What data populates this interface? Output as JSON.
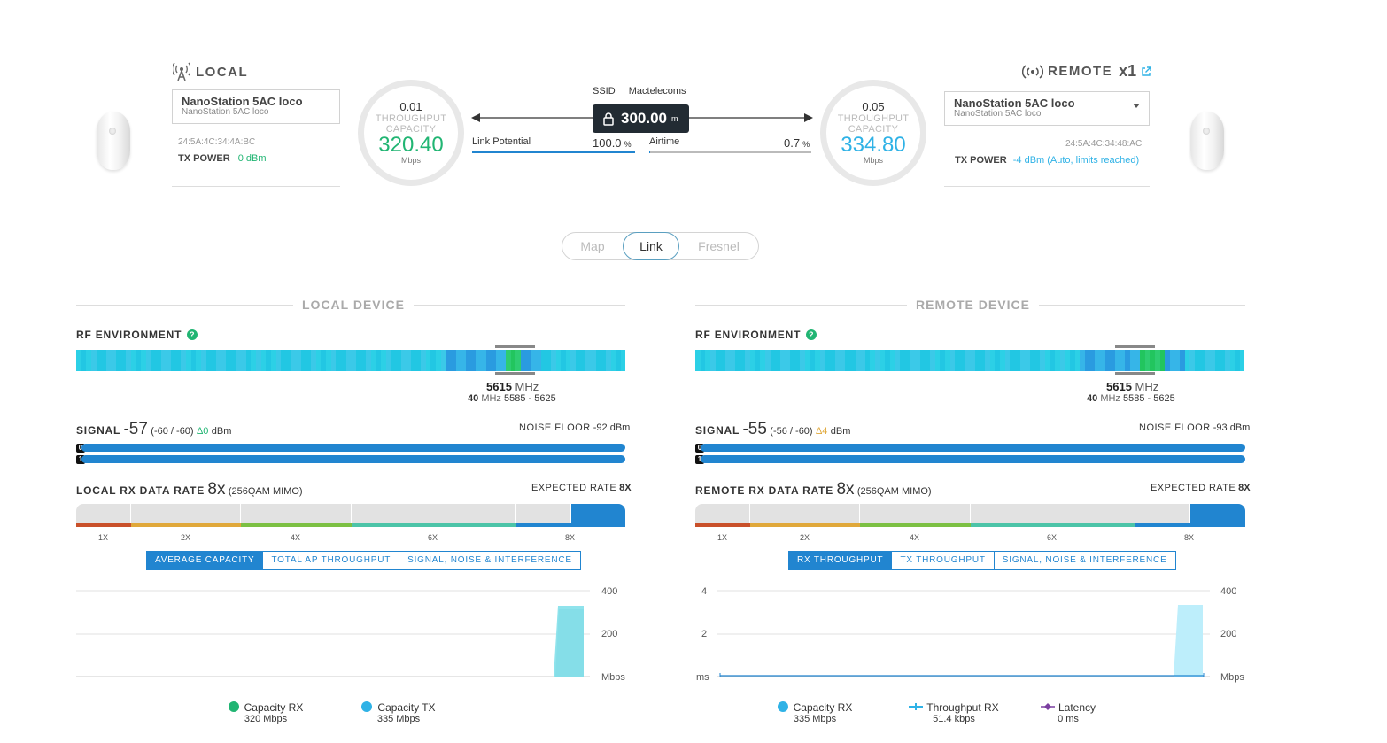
{
  "colors": {
    "accent": "#2185d0",
    "capacity_green": "#21b573",
    "capacity_blue": "#2fb2e6",
    "lock_bg": "#222b33",
    "chart_fill": "#8fe3ec"
  },
  "local": {
    "heading": "LOCAL",
    "device_name": "NanoStation 5AC loco",
    "device_model": "NanoStation 5AC loco",
    "mac": "24:5A:4C:34:4A:BC",
    "tx_power_label": "TX POWER",
    "tx_power_value": "0 dBm",
    "gauge": {
      "throughput": "0.01",
      "throughput_label": "THROUGHPUT",
      "capacity_label": "CAPACITY",
      "capacity": "320.40",
      "unit": "Mbps"
    }
  },
  "remote": {
    "heading": "REMOTE",
    "count": "x1",
    "device_name": "NanoStation 5AC loco",
    "device_model": "NanoStation 5AC loco",
    "mac": "24:5A:4C:34:48:AC",
    "tx_power_label": "TX POWER",
    "tx_power_value": "-4 dBm (Auto, limits reached)",
    "gauge": {
      "throughput": "0.05",
      "throughput_label": "THROUGHPUT",
      "capacity_label": "CAPACITY",
      "capacity": "334.80",
      "unit": "Mbps"
    }
  },
  "link": {
    "ssid_label": "SSID",
    "ssid": "Mactelecoms",
    "distance": "300.00",
    "distance_unit": "m",
    "link_potential_label": "Link Potential",
    "link_potential": "100.0",
    "airtime_label": "Airtime",
    "airtime": "0.7",
    "percent": "%",
    "link_potential_fraction": 1.0,
    "airtime_fraction": 0.007
  },
  "view_tabs": [
    "Map",
    "Link",
    "Fresnel"
  ],
  "view_tab_active": "Link",
  "local_device": {
    "section_title": "LOCAL DEVICE",
    "rf_label": "RF ENVIRONMENT",
    "freq": "5615",
    "freq_unit": "MHz",
    "width": "40",
    "width_unit": "MHz",
    "range": "5585 - 5625",
    "signal_label": "SIGNAL",
    "signal": "-57",
    "signal_chains": "(-60 / -60)",
    "signal_delta": "Δ0",
    "signal_unit": "dBm",
    "noise_label": "NOISE FLOOR",
    "noise": "-92 dBm",
    "rate_label": "LOCAL RX DATA RATE",
    "rate": "8x",
    "rate_mod": "(256QAM MIMO)",
    "expected_label": "EXPECTED RATE",
    "expected": "8X",
    "rate_ticks": [
      "1X",
      "2X",
      "4X",
      "6X",
      "8X"
    ],
    "chart_tabs": [
      "AVERAGE CAPACITY",
      "TOTAL AP THROUGHPUT",
      "SIGNAL, NOISE & INTERFERENCE"
    ],
    "chart_tab_active": 0,
    "y_ticks": [
      "400",
      "200",
      "Mbps"
    ],
    "legend": [
      {
        "label": "Capacity RX",
        "value": "320 Mbps",
        "color": "#21b573",
        "icon": "dot-icon"
      },
      {
        "label": "Capacity TX",
        "value": "335 Mbps",
        "color": "#2fb2e6",
        "icon": "dot-icon"
      }
    ]
  },
  "remote_device": {
    "section_title": "REMOTE DEVICE",
    "rf_label": "RF ENVIRONMENT",
    "freq": "5615",
    "freq_unit": "MHz",
    "width": "40",
    "width_unit": "MHz",
    "range": "5585 - 5625",
    "signal_label": "SIGNAL",
    "signal": "-55",
    "signal_chains": "(-56 / -60)",
    "signal_delta": "Δ4",
    "signal_unit": "dBm",
    "noise_label": "NOISE FLOOR",
    "noise": "-93 dBm",
    "rate_label": "REMOTE RX DATA RATE",
    "rate": "8x",
    "rate_mod": "(256QAM MIMO)",
    "expected_label": "EXPECTED RATE",
    "expected": "8X",
    "rate_ticks": [
      "1X",
      "2X",
      "4X",
      "6X",
      "8X"
    ],
    "chart_tabs": [
      "RX THROUGHPUT",
      "TX THROUGHPUT",
      "SIGNAL, NOISE & INTERFERENCE"
    ],
    "chart_tab_active": 0,
    "y_ticks_left": [
      "4",
      "2",
      "ms"
    ],
    "y_ticks": [
      "400",
      "200",
      "Mbps"
    ],
    "legend": [
      {
        "label": "Capacity RX",
        "value": "335 Mbps",
        "color": "#2fb2e6",
        "icon": "dot-icon"
      },
      {
        "label": "Throughput RX",
        "value": "51.4 kbps",
        "color": "#2fb2e6",
        "icon": "line-marker-icon"
      },
      {
        "label": "Latency",
        "value": "0 ms",
        "color": "#7b3fa0",
        "icon": "diamond-line-icon"
      }
    ]
  }
}
